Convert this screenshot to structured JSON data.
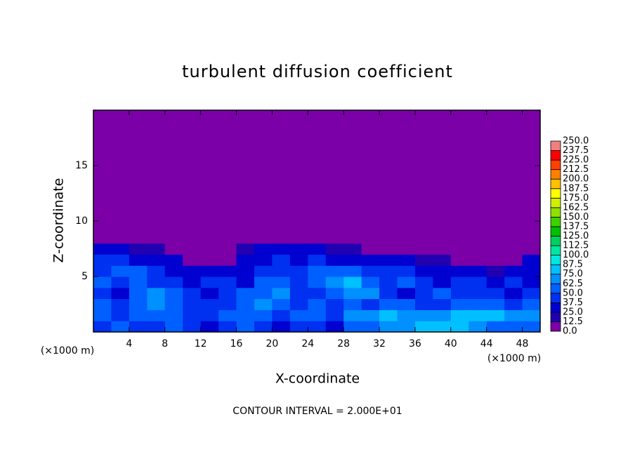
{
  "chart_data": {
    "type": "heatmap",
    "title": "turbulent diffusion coefficient",
    "xlabel": "X-coordinate",
    "ylabel": "Z-coordinate",
    "xunit": "(×1000 m)",
    "yunit": "(×1000 m)",
    "annotation": "CONTOUR INTERVAL = 2.000E+01",
    "xlim": [
      0,
      50
    ],
    "ylim": [
      0,
      20
    ],
    "xticks": [
      4,
      8,
      12,
      16,
      20,
      24,
      28,
      32,
      36,
      40,
      44,
      48
    ],
    "yticks": [
      5,
      10,
      15
    ],
    "x_edges": [
      0,
      2,
      4,
      6,
      8,
      10,
      12,
      14,
      16,
      18,
      20,
      22,
      24,
      26,
      28,
      30,
      32,
      34,
      36,
      38,
      40,
      42,
      44,
      46,
      48,
      50
    ],
    "y_edges": [
      0,
      1,
      2,
      3,
      4,
      5,
      6,
      7,
      8,
      9,
      20
    ],
    "z": [
      [
        40,
        50,
        45,
        40,
        50,
        45,
        35,
        40,
        50,
        45,
        30,
        40,
        45,
        35,
        55,
        60,
        65,
        70,
        75,
        80,
        75,
        70,
        60,
        55,
        50
      ],
      [
        55,
        45,
        50,
        60,
        55,
        45,
        40,
        50,
        55,
        60,
        45,
        55,
        60,
        45,
        65,
        70,
        75,
        70,
        65,
        70,
        75,
        80,
        75,
        70,
        65
      ],
      [
        60,
        40,
        55,
        70,
        60,
        45,
        40,
        45,
        55,
        70,
        55,
        45,
        50,
        40,
        55,
        45,
        60,
        50,
        40,
        45,
        50,
        55,
        50,
        45,
        55
      ],
      [
        45,
        35,
        60,
        65,
        55,
        40,
        35,
        45,
        50,
        60,
        65,
        40,
        45,
        60,
        70,
        65,
        40,
        35,
        45,
        50,
        40,
        45,
        40,
        35,
        45
      ],
      [
        50,
        40,
        55,
        45,
        40,
        35,
        40,
        45,
        35,
        50,
        60,
        45,
        50,
        70,
        75,
        60,
        45,
        50,
        40,
        35,
        45,
        40,
        35,
        40,
        35
      ],
      [
        45,
        55,
        50,
        40,
        35,
        30,
        35,
        30,
        35,
        40,
        45,
        40,
        55,
        60,
        50,
        40,
        45,
        40,
        35,
        30,
        35,
        30,
        15,
        25,
        30
      ],
      [
        40,
        45,
        35,
        30,
        25,
        5,
        10,
        5,
        30,
        35,
        40,
        35,
        40,
        35,
        35,
        30,
        30,
        25,
        20,
        15,
        10,
        5,
        0,
        10,
        25
      ],
      [
        30,
        25,
        20,
        15,
        5,
        0,
        0,
        0,
        15,
        25,
        30,
        25,
        25,
        20,
        15,
        10,
        5,
        0,
        0,
        0,
        0,
        0,
        0,
        0,
        10
      ],
      [
        0,
        0,
        0,
        0,
        0,
        0,
        0,
        0,
        0,
        5,
        10,
        5,
        0,
        0,
        0,
        0,
        0,
        0,
        0,
        0,
        0,
        0,
        0,
        0,
        0
      ],
      [
        0,
        0,
        0,
        0,
        0,
        0,
        0,
        0,
        0,
        0,
        0,
        0,
        0,
        0,
        0,
        0,
        0,
        0,
        0,
        0,
        0,
        0,
        0,
        0,
        0
      ]
    ],
    "levels": [
      {
        "value": 0,
        "label": "0.0"
      },
      12.5,
      {
        "value": 25,
        "label": "25.0"
      },
      37.5,
      {
        "value": 50,
        "label": "50.0"
      },
      62.5,
      {
        "value": 75,
        "label": "75.0"
      },
      87.5,
      {
        "value": 100,
        "label": "100.0"
      },
      112.5,
      {
        "value": 125,
        "label": "125.0"
      },
      137.5,
      {
        "value": 150,
        "label": "150.0"
      },
      162.5,
      {
        "value": 175,
        "label": "175.0"
      },
      187.5,
      {
        "value": 200,
        "label": "200.0"
      },
      212.5,
      {
        "value": 225,
        "label": "225.0"
      },
      237.5,
      {
        "value": 250,
        "label": "250.0"
      }
    ],
    "colors": [
      "#7b00a8",
      "#2000b0",
      "#0000d0",
      "#0030f0",
      "#0060ff",
      "#0090ff",
      "#00c0ff",
      "#00e8e0",
      "#00e8a0",
      "#00d060",
      "#00c000",
      "#40d000",
      "#90e000",
      "#d0f000",
      "#ffff00",
      "#ffc000",
      "#ff8000",
      "#ff4000",
      "#ff0000",
      "#f08080"
    ]
  }
}
